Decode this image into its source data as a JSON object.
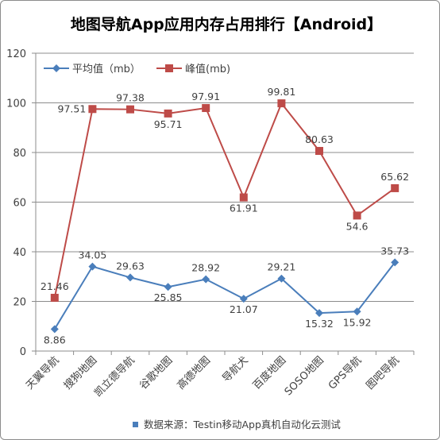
{
  "chart_data": {
    "type": "line",
    "title": "地图导航App应用内存占用排行【Android】",
    "xlabel": "",
    "ylabel": "",
    "ylim": [
      0,
      120
    ],
    "yticks": [
      0,
      20,
      40,
      60,
      80,
      100,
      120
    ],
    "grid": true,
    "legend_position": "top-left",
    "categories": [
      "天翼导航",
      "搜狗地图",
      "凯立德导航",
      "谷歌地图",
      "高德地图",
      "导航犬",
      "百度地图",
      "SOSO地图",
      "GPS导航",
      "图吧导航"
    ],
    "series": [
      {
        "name": "平均值（mb）",
        "color": "#4a7ebb",
        "marker": "diamond",
        "values": [
          8.86,
          34.05,
          29.63,
          25.85,
          28.92,
          21.07,
          29.21,
          15.32,
          15.92,
          35.73
        ],
        "labels": [
          "8.86",
          "34.05",
          "29.63",
          "25.85",
          "28.92",
          "21.07",
          "29.21",
          "15.32",
          "15.92",
          "35.73"
        ]
      },
      {
        "name": "峰值(mb)",
        "color": "#be4b48",
        "marker": "square",
        "values": [
          21.46,
          97.51,
          97.38,
          95.71,
          97.91,
          61.91,
          99.81,
          80.63,
          54.6,
          65.62
        ],
        "labels": [
          "21.46",
          "97.51",
          "97.38",
          "95.71",
          "97.91",
          "61.91",
          "99.81",
          "80.63",
          "54.6",
          "65.62"
        ]
      }
    ],
    "footnote": "数据来源：Testin移动App真机自动化云测试",
    "footnote_marker_color": "#4a7ebb"
  }
}
